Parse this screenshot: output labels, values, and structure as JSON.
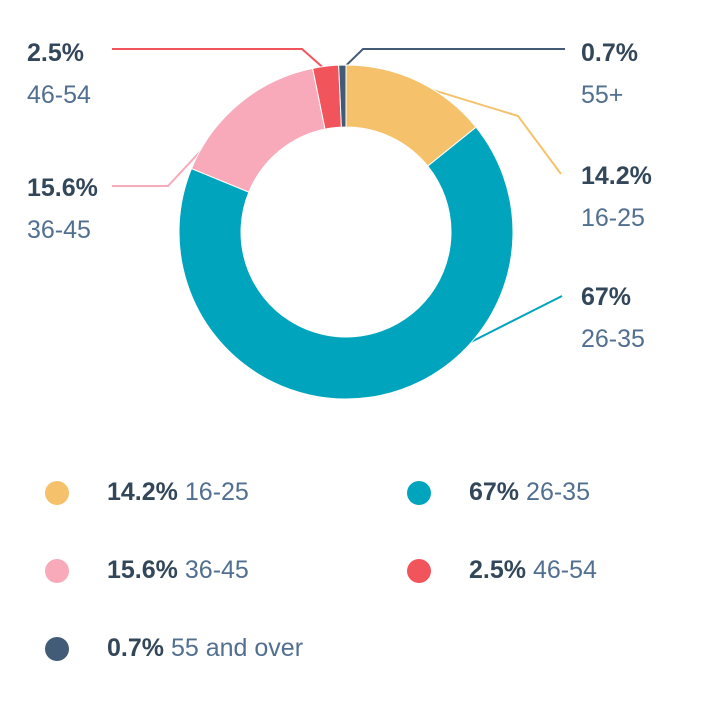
{
  "chart_data": {
    "type": "pie",
    "variant": "donut",
    "categories": [
      "16-25",
      "26-35",
      "36-45",
      "46-54",
      "55+"
    ],
    "values": [
      14.2,
      67,
      15.6,
      2.5,
      0.7
    ],
    "value_labels": [
      "14.2%",
      "67%",
      "15.6%",
      "2.5%",
      "0.7%"
    ],
    "colors": [
      "#f5c26b",
      "#00a4bd",
      "#f8a9ba",
      "#f2545b",
      "#425b76"
    ],
    "start_angle_deg": 0,
    "direction": "clockwise",
    "title": ""
  },
  "callouts": [
    {
      "pct": "2.5%",
      "label": "46-54"
    },
    {
      "pct": "15.6%",
      "label": "36-45"
    },
    {
      "pct": "0.7%",
      "label": "55+"
    },
    {
      "pct": "14.2%",
      "label": "16-25"
    },
    {
      "pct": "67%",
      "label": "26-35"
    }
  ],
  "legend": [
    {
      "pct": "14.2%",
      "label": "16-25",
      "color": "#f5c26b"
    },
    {
      "pct": "67%",
      "label": "26-35",
      "color": "#00a4bd"
    },
    {
      "pct": "15.6%",
      "label": "36-45",
      "color": "#f8a9ba"
    },
    {
      "pct": "2.5%",
      "label": "46-54",
      "color": "#f2545b"
    },
    {
      "pct": "0.7%",
      "label": "55 and over",
      "color": "#425b76"
    }
  ]
}
